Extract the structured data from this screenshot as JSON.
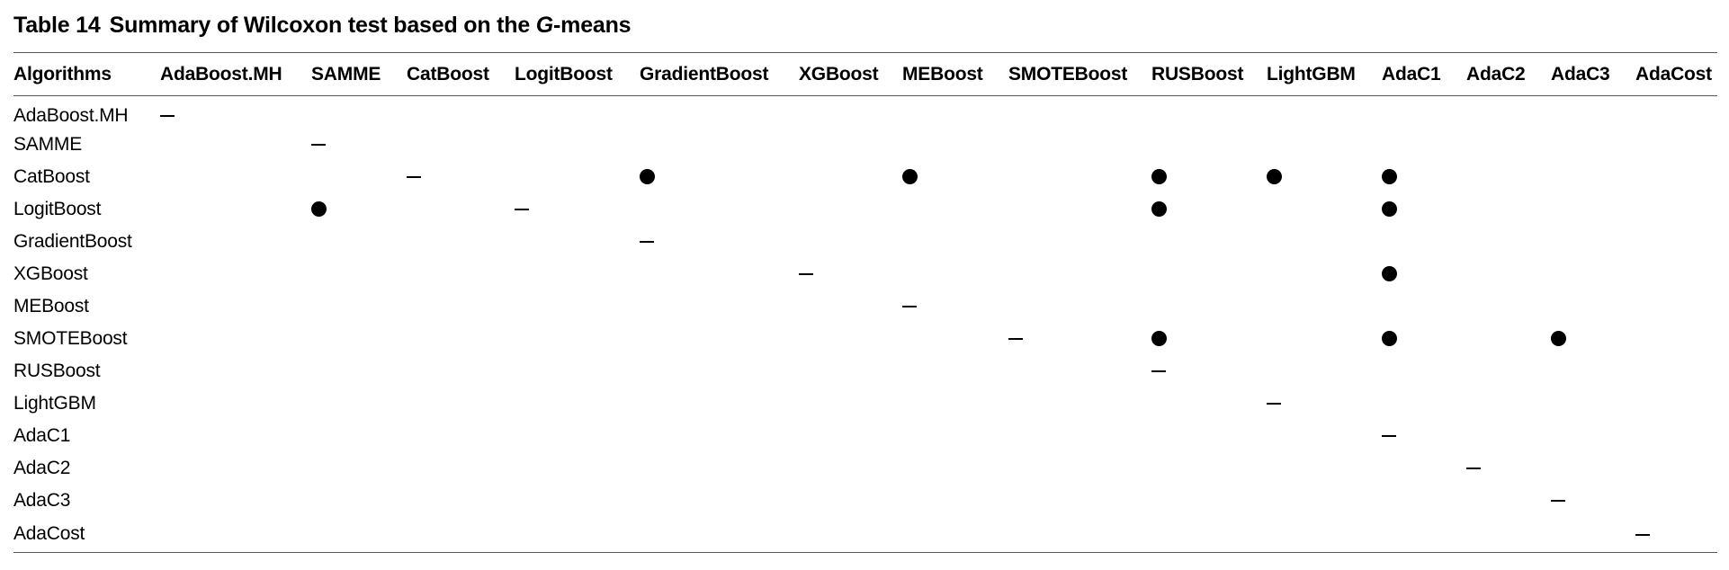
{
  "caption": {
    "label": "Table 14",
    "title_pre": "Summary of Wilcoxon test based on the ",
    "title_italic": "G",
    "title_post": "-means"
  },
  "header": {
    "row_label": "Algorithms",
    "columns": [
      "AdaBoost.MH",
      "SAMME",
      "CatBoost",
      "LogitBoost",
      "GradientBoost",
      "XGBoost",
      "MEBoost",
      "SMOTEBoost",
      "RUSBoost",
      "LightGBM",
      "AdaC1",
      "AdaC2",
      "AdaC3",
      "AdaCost"
    ]
  },
  "rows": [
    {
      "name": "AdaBoost.MH",
      "cells": [
        "–",
        "",
        "",
        "",
        "",
        "",
        "",
        "",
        "",
        "",
        "",
        "",
        "",
        ""
      ]
    },
    {
      "name": "SAMME",
      "cells": [
        "",
        "–",
        "",
        "",
        "",
        "",
        "",
        "",
        "",
        "",
        "",
        "",
        "",
        ""
      ]
    },
    {
      "name": "CatBoost",
      "cells": [
        "",
        "",
        "–",
        "",
        "●",
        "",
        "●",
        "",
        "●",
        "●",
        "●",
        "",
        "",
        ""
      ]
    },
    {
      "name": "LogitBoost",
      "cells": [
        "",
        "●",
        "",
        "–",
        "",
        "",
        "",
        "",
        "●",
        "",
        "●",
        "",
        "",
        ""
      ]
    },
    {
      "name": "GradientBoost",
      "cells": [
        "",
        "",
        "",
        "",
        "–",
        "",
        "",
        "",
        "",
        "",
        "",
        "",
        "",
        ""
      ]
    },
    {
      "name": "XGBoost",
      "cells": [
        "",
        "",
        "",
        "",
        "",
        "–",
        "",
        "",
        "",
        "",
        "●",
        "",
        "",
        ""
      ]
    },
    {
      "name": "MEBoost",
      "cells": [
        "",
        "",
        "",
        "",
        "",
        "",
        "–",
        "",
        "",
        "",
        "",
        "",
        "",
        ""
      ]
    },
    {
      "name": "SMOTEBoost",
      "cells": [
        "",
        "",
        "",
        "",
        "",
        "",
        "",
        "–",
        "●",
        "",
        "●",
        "",
        "●",
        ""
      ]
    },
    {
      "name": "RUSBoost",
      "cells": [
        "",
        "",
        "",
        "",
        "",
        "",
        "",
        "",
        "–",
        "",
        "",
        "",
        "",
        ""
      ]
    },
    {
      "name": "LightGBM",
      "cells": [
        "",
        "",
        "",
        "",
        "",
        "",
        "",
        "",
        "",
        "–",
        "",
        "",
        "",
        ""
      ]
    },
    {
      "name": "AdaC1",
      "cells": [
        "",
        "",
        "",
        "",
        "",
        "",
        "",
        "",
        "",
        "",
        "–",
        "",
        "",
        ""
      ]
    },
    {
      "name": "AdaC2",
      "cells": [
        "",
        "",
        "",
        "",
        "",
        "",
        "",
        "",
        "",
        "",
        "",
        "–",
        "",
        ""
      ]
    },
    {
      "name": "AdaC3",
      "cells": [
        "",
        "",
        "",
        "",
        "",
        "",
        "",
        "",
        "",
        "",
        "",
        "",
        "–",
        ""
      ]
    },
    {
      "name": "AdaCost",
      "cells": [
        "",
        "",
        "",
        "",
        "",
        "",
        "",
        "",
        "",
        "",
        "",
        "",
        "",
        "–"
      ]
    }
  ]
}
